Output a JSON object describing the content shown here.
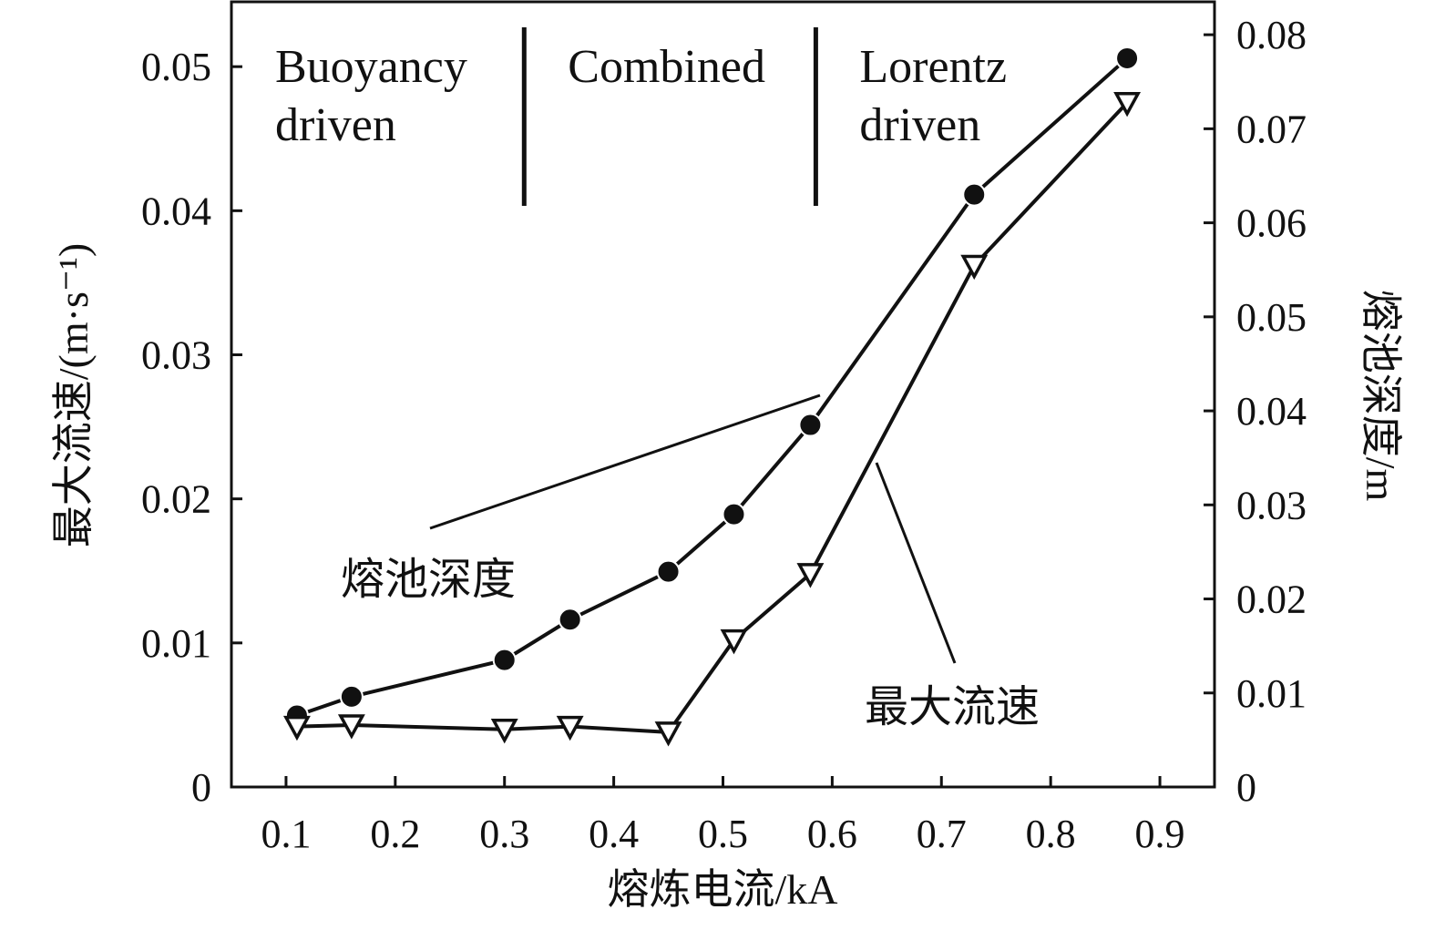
{
  "chart_data": {
    "type": "line",
    "xlabel": "熔炼电流/kA",
    "ylabel_left": "最大流速/(m·s⁻¹)",
    "ylabel_right": "熔池深度/m",
    "x_ticks": [
      "0.1",
      "0.2",
      "0.3",
      "0.4",
      "0.5",
      "0.6",
      "0.7",
      "0.8",
      "0.9"
    ],
    "y_left_ticks": [
      "0",
      "0.01",
      "0.02",
      "0.03",
      "0.04",
      "0.05"
    ],
    "y_right_ticks": [
      "0",
      "0.01",
      "0.02",
      "0.03",
      "0.04",
      "0.05",
      "0.06",
      "0.07",
      "0.08"
    ],
    "xlim": [
      0.05,
      0.95
    ],
    "ylim_left": [
      0,
      0.0545
    ],
    "ylim_right": [
      0,
      0.0835
    ],
    "grid": false,
    "regions": [
      {
        "line1": "Buoyancy",
        "line2": "driven",
        "x_start": 0.05,
        "x_end": 0.318
      },
      {
        "line1": "Combined",
        "line2": "",
        "x_start": 0.318,
        "x_end": 0.585
      },
      {
        "line1": "Lorentz",
        "line2": "driven",
        "x_start": 0.585,
        "x_end": 0.95
      }
    ],
    "series": [
      {
        "name": "熔池深度",
        "axis": "right",
        "marker": "filled-circle",
        "x": [
          0.11,
          0.16,
          0.3,
          0.36,
          0.45,
          0.51,
          0.58,
          0.73,
          0.87
        ],
        "y": [
          0.0076,
          0.0096,
          0.0135,
          0.0178,
          0.0229,
          0.029,
          0.0385,
          0.063,
          0.0775
        ]
      },
      {
        "name": "最大流速",
        "axis": "left",
        "marker": "hollow-triangle-down",
        "x": [
          0.11,
          0.16,
          0.3,
          0.36,
          0.45,
          0.51,
          0.58,
          0.73,
          0.87
        ],
        "y": [
          0.0042,
          0.0043,
          0.004,
          0.0042,
          0.0038,
          0.0102,
          0.0148,
          0.0362,
          0.0475
        ]
      }
    ],
    "annotations": [
      {
        "text": "熔池深度",
        "series": 0,
        "point_index": 6
      },
      {
        "text": "最大流速",
        "series": 1,
        "point_index": 7
      }
    ]
  }
}
